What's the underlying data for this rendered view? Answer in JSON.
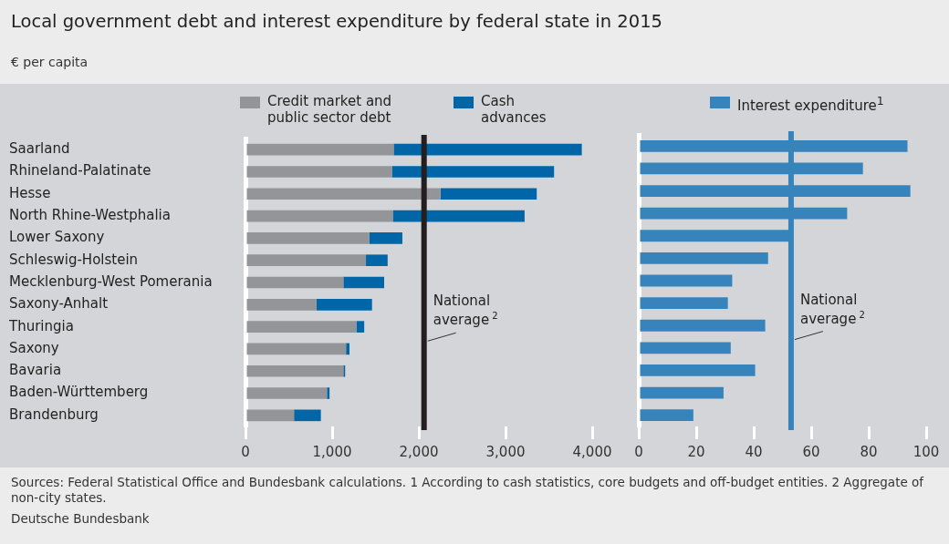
{
  "chart_data": [
    {
      "type": "bar",
      "title": "Local government debt and interest expenditure by federal state in 2015",
      "subtitle": "€ per capita",
      "orientation": "horizontal",
      "stacked": true,
      "legend": "top",
      "grid": false,
      "categories": [
        "Saarland",
        "Rhineland-Palatinate",
        "Hesse",
        "North Rhine-Westphalia",
        "Lower Saxony",
        "Schleswig-Holstein",
        "Mecklenburg-West Pomerania",
        "Saxony-Anhalt",
        "Thuringia",
        "Saxony",
        "Bavaria",
        "Baden-Württemberg",
        "Brandenburg"
      ],
      "series": [
        {
          "name": "Credit market and public sector debt",
          "color": "#939598",
          "values": [
            1710,
            1690,
            2250,
            1700,
            1430,
            1390,
            1130,
            820,
            1280,
            1160,
            1130,
            940,
            560
          ]
        },
        {
          "name": "Cash advances",
          "color": "#0066a8",
          "values": [
            2170,
            1870,
            1110,
            1520,
            380,
            250,
            470,
            640,
            90,
            40,
            20,
            30,
            310
          ]
        }
      ],
      "xlim": [
        0,
        4000
      ],
      "xticks": [
        0,
        {
          "value": 1000,
          "label": "1,000"
        },
        {
          "value": 2000,
          "label": "2,000"
        },
        {
          "value": 3000,
          "label": "3,000"
        },
        {
          "value": 4000,
          "label": "4,000"
        }
      ],
      "ref_lines": [
        {
          "axis": "x",
          "value": 2060,
          "label": "National average$^{2}$",
          "color": "#231f20"
        }
      ]
    },
    {
      "type": "bar",
      "orientation": "horizontal",
      "legend": "top",
      "grid": false,
      "tick_labels": "x",
      "categories": [
        null,
        null,
        null,
        null,
        null,
        null,
        null,
        null,
        null,
        null,
        null,
        null,
        null
      ],
      "series": [
        {
          "name": "Interest expenditure$^{1}$",
          "color": "#3784bd",
          "values": [
            93.5,
            78,
            94.5,
            72.5,
            52.5,
            45,
            32.5,
            31,
            44,
            32,
            40.5,
            29.5,
            19
          ]
        }
      ],
      "xlim": [
        0,
        100
      ],
      "xticks": [
        0,
        20,
        40,
        60,
        80,
        100
      ],
      "ref_lines": [
        {
          "axis": "x",
          "value": 53,
          "label": "National average$^{2}$",
          "color": "#3784bd"
        }
      ],
      "annotations": [
        "Sources: Federal Statistical Office and Bundesbank calculations. 1 According to cash statistics, core budgets and off-budget entities. 2 Aggregate of non-city states.",
        "Deutsche Bundesbank"
      ]
    }
  ]
}
